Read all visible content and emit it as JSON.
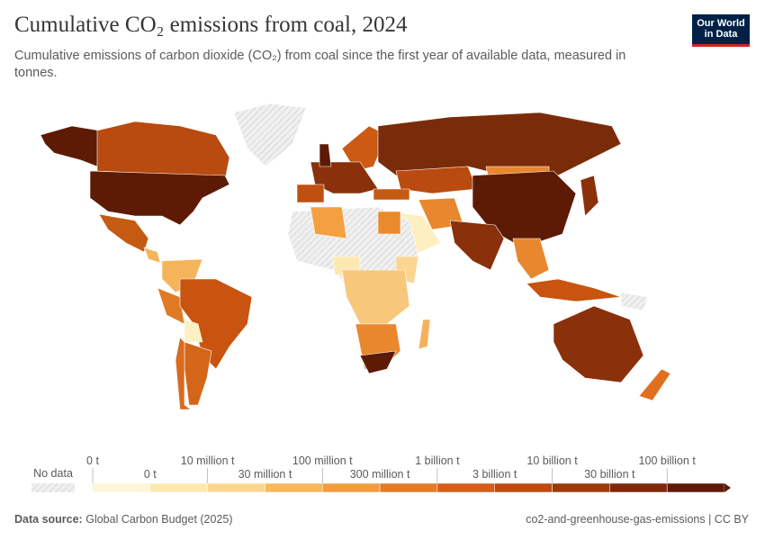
{
  "header": {
    "title": "Cumulative CO₂ emissions from coal, 2024",
    "subtitle": "Cumulative emissions of carbon dioxide (CO₂) from coal since the first year of available data, measured in tonnes."
  },
  "logo": "Our World in Data",
  "legend": {
    "no_data": "No data",
    "upper_labels": [
      "0 t",
      "10 million t",
      "100 million t",
      "1 billion t",
      "10 billion t",
      "100 billion t"
    ],
    "lower_labels": [
      "0 t",
      "30 million t",
      "300 million t",
      "3 billion t",
      "30 billion t"
    ],
    "colors": [
      "#fef6d9",
      "#fde9b0",
      "#fbd690",
      "#f9b85a",
      "#f29d3d",
      "#e67a25",
      "#d65e16",
      "#bf4a0e",
      "#9e3a0a",
      "#80290a",
      "#5d1b06"
    ]
  },
  "footer": {
    "source_label": "Data source:",
    "source": "Global Carbon Budget (2025)",
    "slug": "co2-and-greenhouse-gas-emissions | CC BY"
  }
}
